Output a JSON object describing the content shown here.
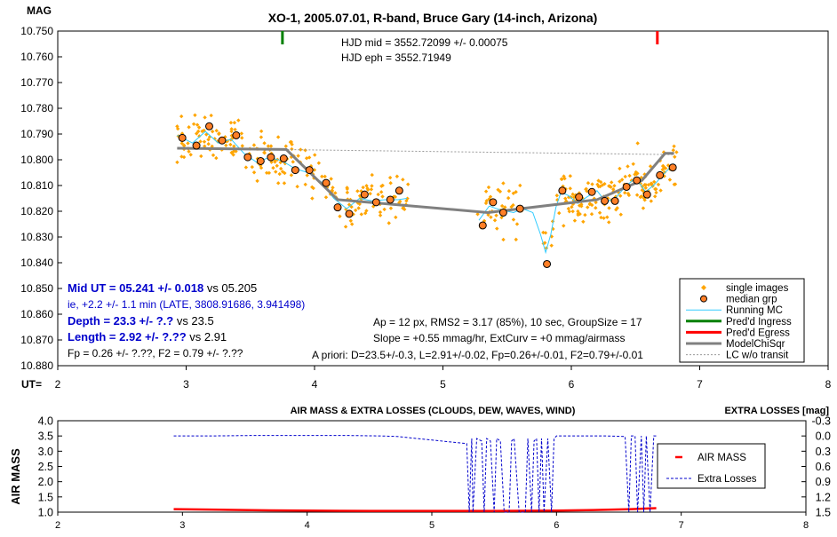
{
  "chart_data": [
    {
      "type": "scatter",
      "title": "XO-1, 2005.07.01, R-band, Bruce Gary (14-inch, Arizona)",
      "ylabel": "MAG",
      "xlabel": "UT=",
      "xlim": [
        2,
        8
      ],
      "ylim": [
        10.88,
        10.75
      ],
      "x_ticks": [
        "2",
        "3",
        "4",
        "5",
        "6",
        "7",
        "8"
      ],
      "y_ticks": [
        "10.750",
        "10.760",
        "10.770",
        "10.780",
        "10.790",
        "10.800",
        "10.810",
        "10.820",
        "10.830",
        "10.840",
        "10.850",
        "10.860",
        "10.870",
        "10.880"
      ],
      "top_right_text": [
        "HJD mid = 3552.72099 +/- 0.00075",
        "HJD eph = 3552.71949"
      ],
      "ingress_marker_x": 3.75,
      "egress_marker_x": 6.67,
      "results": {
        "mid_ut": "Mid UT = 05.241 +/- 0.018",
        "mid_ut_vs": " vs 05.205",
        "ie_line": "ie, +2.2 +/- 1.1 min (LATE, 3808.91686, 3.941498)",
        "depth": "Depth = 23.3 +/- ?.?",
        "depth_vs": " vs 23.5",
        "length": "Length = 2.92 +/- ?.??",
        "length_vs": " vs 2.91",
        "fp_f2": "Fp = 0.26 +/- ?.??, F2 = 0.79 +/- ?.??"
      },
      "params": [
        "Ap = 12 px, RMS2 = 3.17 (85%), 10 sec, GroupSize = 17",
        "Slope = +0.55 mmag/hr, ExtCurv = +0 mmag/airmass",
        "A priori:  D=23.5+/-0.3, L=2.91+/-0.02, Fp=0.26+/-0.01, F2=0.79+/-0.01"
      ],
      "legend": [
        {
          "label": "single images",
          "color": "#ffa500",
          "style": "diamond"
        },
        {
          "label": "median grp",
          "color": "#ff7f27",
          "style": "circle"
        },
        {
          "label": "Running MC",
          "color": "#33ccff",
          "style": "line"
        },
        {
          "label": "Pred'd Ingress",
          "color": "#008000",
          "style": "thick"
        },
        {
          "label": "Pred'd Egress",
          "color": "#ff0000",
          "style": "thick"
        },
        {
          "label": "ModelChiSqr",
          "color": "#808080",
          "style": "thick"
        },
        {
          "label": "LC w/o transit",
          "color": "#999999",
          "style": "dash"
        }
      ],
      "median_grp": [
        [
          2.97,
          10.7915
        ],
        [
          3.08,
          10.7945
        ],
        [
          3.18,
          10.787
        ],
        [
          3.28,
          10.7925
        ],
        [
          3.39,
          10.7905
        ],
        [
          3.48,
          10.799
        ],
        [
          3.58,
          10.8005
        ],
        [
          3.66,
          10.799
        ],
        [
          3.76,
          10.7995
        ],
        [
          3.85,
          10.804
        ],
        [
          3.96,
          10.804
        ],
        [
          4.09,
          10.809
        ],
        [
          4.18,
          10.8185
        ],
        [
          4.27,
          10.821
        ],
        [
          4.39,
          10.8135
        ],
        [
          4.48,
          10.8165
        ],
        [
          4.59,
          10.8155
        ],
        [
          4.66,
          10.812
        ],
        [
          5.31,
          10.8255
        ],
        [
          5.39,
          10.8165
        ],
        [
          5.47,
          10.8205
        ],
        [
          5.6,
          10.819
        ],
        [
          5.81,
          10.8405
        ],
        [
          5.93,
          10.812
        ],
        [
          6.06,
          10.8145
        ],
        [
          6.16,
          10.8125
        ],
        [
          6.26,
          10.816
        ],
        [
          6.34,
          10.816
        ],
        [
          6.43,
          10.8105
        ],
        [
          6.51,
          10.808
        ],
        [
          6.59,
          10.8135
        ],
        [
          6.69,
          10.806
        ],
        [
          6.79,
          10.803
        ]
      ],
      "model_chisqr": [
        [
          2.93,
          10.7955
        ],
        [
          3.78,
          10.796
        ],
        [
          4.18,
          10.8155
        ],
        [
          5.35,
          10.8205
        ],
        [
          6.2,
          10.8155
        ],
        [
          6.55,
          10.808
        ],
        [
          6.73,
          10.7975
        ],
        [
          6.8,
          10.7975
        ]
      ],
      "lc_wo_transit": [
        [
          2.93,
          10.7955
        ],
        [
          6.8,
          10.798
        ]
      ],
      "running_mc": [
        [
          2.93,
          10.7905
        ],
        [
          3.05,
          10.7935
        ],
        [
          3.15,
          10.789
        ],
        [
          3.25,
          10.7935
        ],
        [
          3.35,
          10.792
        ],
        [
          3.45,
          10.7975
        ],
        [
          3.55,
          10.801
        ],
        [
          3.65,
          10.799
        ],
        [
          3.75,
          10.8005
        ],
        [
          3.85,
          10.8035
        ],
        [
          3.95,
          10.805
        ],
        [
          4.05,
          10.8085
        ],
        [
          4.15,
          10.815
        ],
        [
          4.25,
          10.819
        ],
        [
          4.35,
          10.815
        ],
        [
          4.45,
          10.816
        ],
        [
          4.55,
          10.8155
        ],
        [
          4.65,
          10.8155
        ],
        [
          4.72,
          10.815
        ],
        [
          5.28,
          10.8235
        ],
        [
          5.36,
          10.818
        ],
        [
          5.45,
          10.8195
        ],
        [
          5.55,
          10.8205
        ],
        [
          5.62,
          10.819
        ],
        [
          5.7,
          10.8205
        ],
        [
          5.76,
          10.829
        ],
        [
          5.8,
          10.836
        ],
        [
          5.84,
          10.829
        ],
        [
          5.88,
          10.8185
        ],
        [
          5.92,
          10.8125
        ],
        [
          5.98,
          10.814
        ],
        [
          6.05,
          10.817
        ],
        [
          6.12,
          10.8145
        ],
        [
          6.2,
          10.812
        ],
        [
          6.27,
          10.8165
        ],
        [
          6.35,
          10.8145
        ],
        [
          6.42,
          10.8105
        ],
        [
          6.5,
          10.807
        ],
        [
          6.58,
          10.8125
        ],
        [
          6.65,
          10.8095
        ],
        [
          6.72,
          10.8055
        ],
        [
          6.8,
          10.8015
        ]
      ],
      "single_images_segments": [
        {
          "x": [
            2.93,
            4.75
          ],
          "count": 230
        },
        {
          "x": [
            5.27,
            5.62
          ],
          "count": 40
        },
        {
          "x": [
            5.78,
            5.86
          ],
          "count": 10
        },
        {
          "x": [
            5.88,
            6.82
          ],
          "count": 160
        }
      ]
    },
    {
      "type": "line",
      "title": "AIR MASS & EXTRA LOSSES (CLOUDS, DEW, WAVES, WIND)",
      "ylabel": "AIR MASS",
      "y2label": "EXTRA LOSSES [mag]",
      "xlim": [
        2,
        8
      ],
      "ylim": [
        1.0,
        4.0
      ],
      "y2lim": [
        1.5,
        -0.3
      ],
      "x_ticks": [
        "2",
        "3",
        "4",
        "5",
        "6",
        "7",
        "8"
      ],
      "y_ticks": [
        "4.0",
        "3.5",
        "3.0",
        "2.5",
        "2.0",
        "1.5",
        "1.0"
      ],
      "y2_ticks": [
        "-0.3",
        "0.0",
        "0.3",
        "0.6",
        "0.9",
        "1.2",
        "1.5"
      ],
      "series": [
        {
          "name": "AIR MASS",
          "color": "#ff0000",
          "x": [
            2.93,
            3.3,
            3.7,
            4.0,
            4.5,
            5.0,
            5.5,
            6.0,
            6.3,
            6.6,
            6.8
          ],
          "y": [
            1.1,
            1.08,
            1.06,
            1.05,
            1.04,
            1.04,
            1.04,
            1.05,
            1.07,
            1.1,
            1.13
          ]
        },
        {
          "name": "Extra Losses",
          "color": "#0000cc",
          "x": [
            2.93,
            3.2,
            3.6,
            4.0,
            4.3,
            4.6,
            4.72,
            5.28,
            5.3,
            5.32,
            5.33,
            5.36,
            5.4,
            5.42,
            5.44,
            5.47,
            5.5,
            5.52,
            5.55,
            5.58,
            5.62,
            5.64,
            5.66,
            5.7,
            5.75,
            5.77,
            5.8,
            5.82,
            5.84,
            5.86,
            5.88,
            5.9,
            5.93,
            5.96,
            5.98,
            6.0,
            6.2,
            6.4,
            6.55,
            6.58,
            6.6,
            6.63,
            6.65,
            6.68,
            6.7,
            6.72,
            6.75,
            6.78,
            6.8
          ],
          "y": [
            0.0,
            0.0,
            -0.01,
            -0.01,
            -0.01,
            0.0,
            0.01,
            0.15,
            1.5,
            0.05,
            1.5,
            0.05,
            0.1,
            1.5,
            0.05,
            0.1,
            1.5,
            0.05,
            0.1,
            1.5,
            1.5,
            0.1,
            0.05,
            1.5,
            1.5,
            0.05,
            1.5,
            0.1,
            0.05,
            1.5,
            0.05,
            1.5,
            0.05,
            1.5,
            0.05,
            0.0,
            0.0,
            0.0,
            0.01,
            1.5,
            0.0,
            0.0,
            1.5,
            0.0,
            1.5,
            0.0,
            1.5,
            0.0,
            0.0
          ]
        }
      ],
      "legend": [
        "AIR MASS",
        "Extra Losses"
      ]
    }
  ]
}
